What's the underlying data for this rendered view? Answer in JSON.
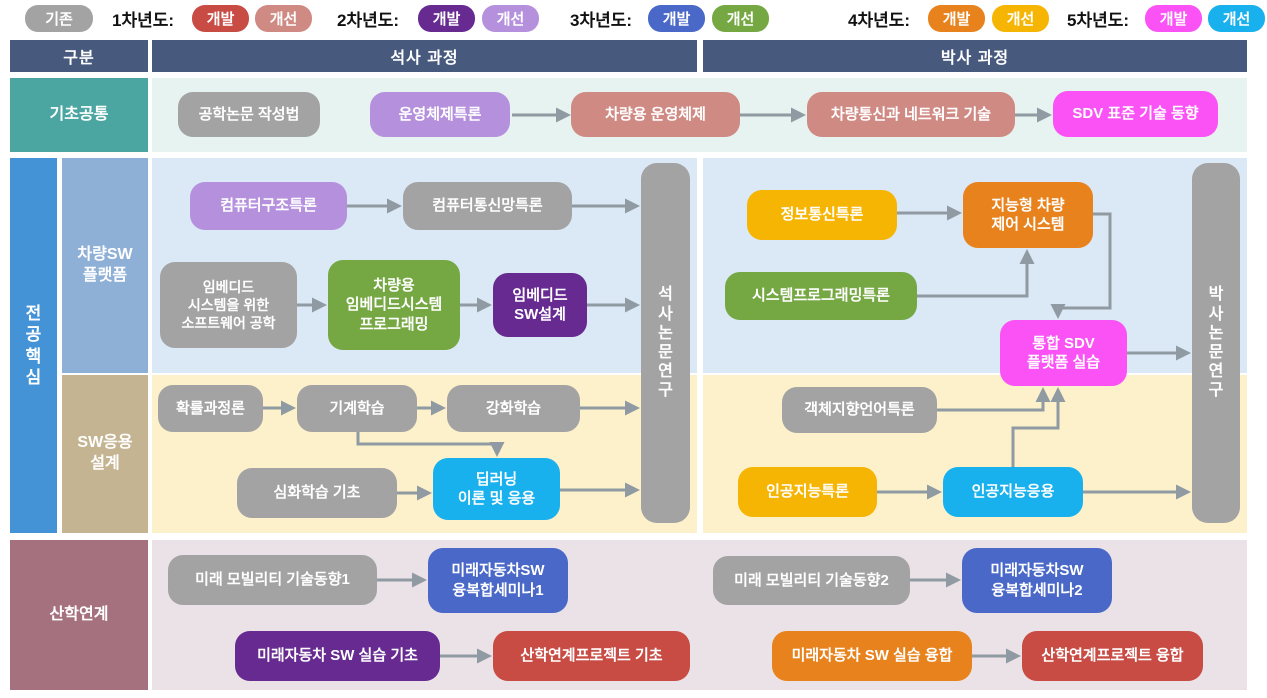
{
  "palette": {
    "existing_gray": "#a3a3a3",
    "y1_dev": "#c84b44",
    "y1_imp": "#d08a84",
    "y2_dev": "#662a90",
    "y2_imp": "#b591dd",
    "y3_dev": "#4a68c8",
    "y3_imp": "#75a843",
    "y4_dev": "#e8821c",
    "y4_imp": "#f6b503",
    "y5_dev": "#fa52f5",
    "y5_imp": "#19b1ed",
    "header": "#475a7d",
    "basic_label": "#4ba6a1",
    "basic_bg": "#e7f3f0",
    "core_label": "#4493d7",
    "platform_label": "#8fb0d6",
    "platform_bg": "#dbe8f6",
    "apps_label": "#c5b492",
    "apps_bg": "#fdf1cc",
    "industry_label": "#a6717e",
    "industry_bg": "#ebe2e8",
    "box_gray": "#a3a3a3",
    "arrow": "#909aa2"
  },
  "legend": {
    "existing": {
      "label": "기존",
      "color": "existing_gray"
    },
    "groups": [
      {
        "label": "1차년도:",
        "badges": [
          {
            "label": "개발",
            "color": "y1_dev"
          },
          {
            "label": "개선",
            "color": "y1_imp"
          }
        ]
      },
      {
        "label": "2차년도:",
        "badges": [
          {
            "label": "개발",
            "color": "y2_dev"
          },
          {
            "label": "개선",
            "color": "y2_imp"
          }
        ]
      },
      {
        "label": "3차년도:",
        "badges": [
          {
            "label": "개발",
            "color": "y3_dev"
          },
          {
            "label": "개선",
            "color": "y3_imp"
          }
        ]
      },
      {
        "label": "4차년도:",
        "badges": [
          {
            "label": "개발",
            "color": "y4_dev"
          },
          {
            "label": "개선",
            "color": "y4_imp"
          }
        ]
      },
      {
        "label": "5차년도:",
        "badges": [
          {
            "label": "개발",
            "color": "y5_dev"
          },
          {
            "label": "개선",
            "color": "y5_imp"
          }
        ]
      }
    ]
  },
  "header": {
    "col_category": "구분",
    "col_master": "석사 과정",
    "col_doctoral": "박사 과정"
  },
  "row_labels": {
    "basic": "기초공통",
    "core": "전공핵심",
    "platform": "차량SW\n플랫폼",
    "apps": "SW응용\n설계",
    "industry": "산학연계"
  },
  "research_bars": {
    "master": "석사논문연구",
    "doctoral": "박사논문연구"
  },
  "courses": [
    {
      "id": "b1",
      "label": "공학논문 작성법",
      "color": "box_gray"
    },
    {
      "id": "b2",
      "label": "운영체제특론",
      "color": "y2_imp"
    },
    {
      "id": "b3",
      "label": "차량용 운영체제",
      "color": "y1_imp"
    },
    {
      "id": "b4",
      "label": "차량통신과 네트워크 기술",
      "color": "y1_imp"
    },
    {
      "id": "b5",
      "label": "SDV 표준 기술 동향",
      "color": "y5_dev"
    },
    {
      "id": "m1",
      "label": "컴퓨터구조특론",
      "color": "y2_imp"
    },
    {
      "id": "m2",
      "label": "컴퓨터통신망특론",
      "color": "box_gray"
    },
    {
      "id": "m3",
      "label": "임베디드\n시스템을 위한\n소프트웨어 공학",
      "color": "box_gray"
    },
    {
      "id": "m4",
      "label": "차량용\n임베디드시스템\n프로그래밍",
      "color": "y3_imp"
    },
    {
      "id": "m5",
      "label": "임베디드\nSW설계",
      "color": "y2_dev"
    },
    {
      "id": "m6",
      "label": "확률과정론",
      "color": "box_gray"
    },
    {
      "id": "m7",
      "label": "기계학습",
      "color": "box_gray"
    },
    {
      "id": "m8",
      "label": "강화학습",
      "color": "box_gray"
    },
    {
      "id": "m9",
      "label": "심화학습 기초",
      "color": "box_gray"
    },
    {
      "id": "m10",
      "label": "딥러닝\n이론 및 응용",
      "color": "y5_imp"
    },
    {
      "id": "d1",
      "label": "정보통신특론",
      "color": "y4_imp"
    },
    {
      "id": "d2",
      "label": "지능형 차량\n제어 시스템",
      "color": "y4_dev"
    },
    {
      "id": "d3",
      "label": "시스템프로그래밍특론",
      "color": "y3_imp"
    },
    {
      "id": "d4",
      "label": "통합 SDV\n플랫폼 실습",
      "color": "y5_dev"
    },
    {
      "id": "d5",
      "label": "객체지향언어특론",
      "color": "box_gray"
    },
    {
      "id": "d6",
      "label": "인공지능특론",
      "color": "y4_imp"
    },
    {
      "id": "d7",
      "label": "인공지능응용",
      "color": "y5_imp"
    },
    {
      "id": "i1",
      "label": "미래 모빌리티 기술동향1",
      "color": "box_gray"
    },
    {
      "id": "i2",
      "label": "미래자동차SW\n융복합세미나1",
      "color": "y3_dev"
    },
    {
      "id": "i3",
      "label": "미래자동차 SW 실습 기초",
      "color": "y2_dev"
    },
    {
      "id": "i4",
      "label": "산학연계프로젝트 기초",
      "color": "y1_dev"
    },
    {
      "id": "i5",
      "label": "미래 모빌리티 기술동향2",
      "color": "box_gray"
    },
    {
      "id": "i6",
      "label": "미래자동차SW\n융복합세미나2",
      "color": "y3_dev"
    },
    {
      "id": "i7",
      "label": "미래자동차 SW 실습 융합",
      "color": "y4_dev"
    },
    {
      "id": "i8",
      "label": "산학연계프로젝트 융합",
      "color": "y1_dev"
    }
  ]
}
